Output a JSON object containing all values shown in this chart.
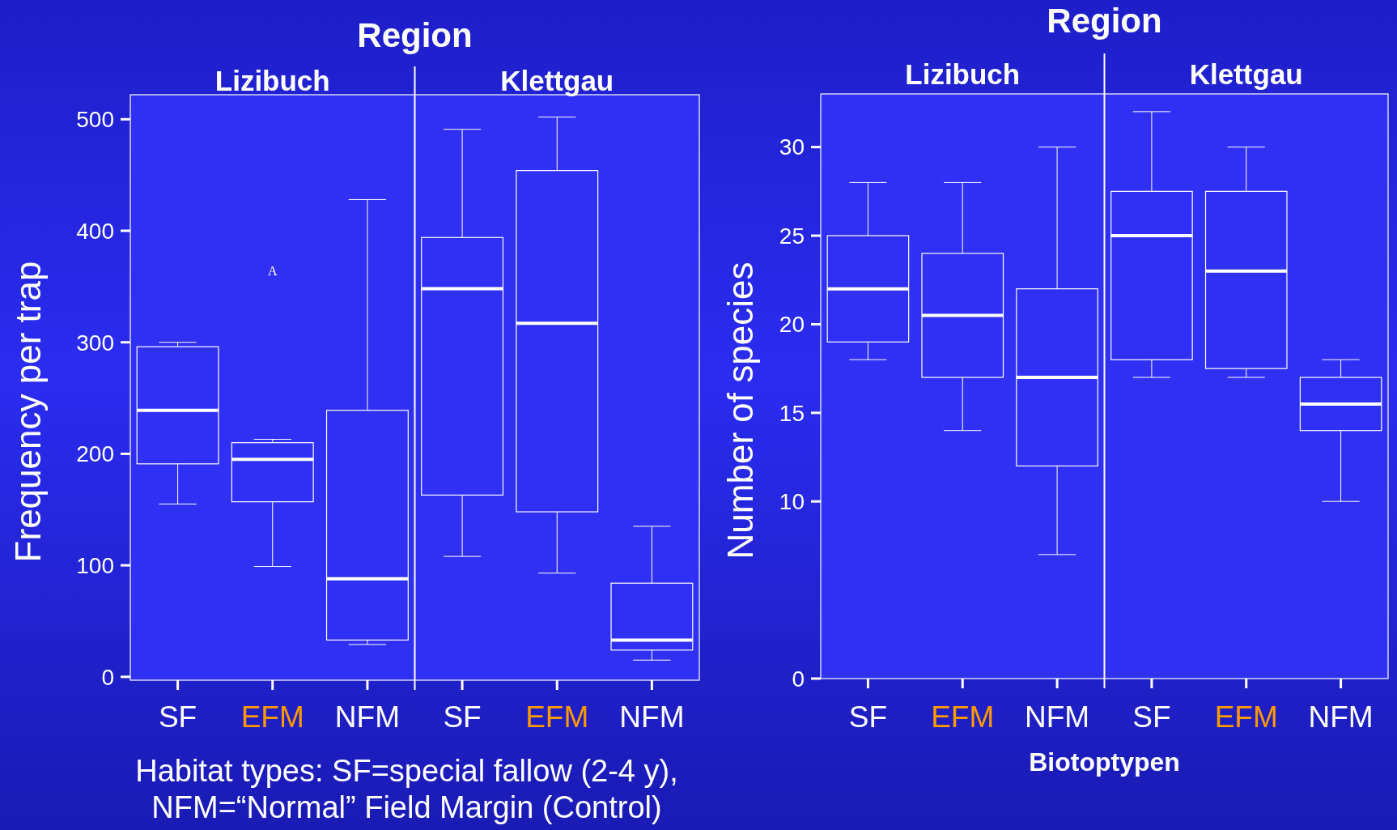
{
  "chart_data": [
    {
      "type": "box",
      "title": "Region",
      "ylabel": "Frequency per trap",
      "categories": [
        "SF",
        "EFM",
        "NFM",
        "SF",
        "EFM",
        "NFM"
      ],
      "color": "#ffffff",
      "ylim": [
        -3,
        522
      ],
      "yticks": [
        0,
        100,
        200,
        300,
        400,
        500
      ],
      "boxes": [
        {
          "low": 155,
          "q1": 191,
          "median": 239,
          "q3": 296,
          "high": 300
        },
        {
          "low": 99,
          "q1": 157,
          "median": 195,
          "q3": 210,
          "high": 213
        },
        {
          "low": 29,
          "q1": 33,
          "median": 88,
          "q3": 239,
          "high": 428
        },
        {
          "low": 108,
          "q1": 163,
          "median": 348,
          "q3": 394,
          "high": 491
        },
        {
          "low": 93,
          "q1": 148,
          "median": 317,
          "q3": 454,
          "high": 502
        },
        {
          "low": 15,
          "q1": 24,
          "median": 33,
          "q3": 84,
          "high": 135
        }
      ],
      "annotations": [
        "Lizibuch",
        "Klettgau",
        "A",
        "Habitat types: SF=special fallow (2-4 y),",
        "NFM=“Normal” Field Margin (Control)"
      ]
    },
    {
      "type": "box",
      "title": "Region",
      "ylabel": "Number of species",
      "xlabel": "Biotoptypen",
      "categories": [
        "SF",
        "EFM",
        "NFM",
        "SF",
        "EFM",
        "NFM"
      ],
      "color": "#ffffff",
      "ylim": [
        0,
        33
      ],
      "yticks": [
        0,
        10,
        15,
        20,
        25,
        30
      ],
      "boxes": [
        {
          "low": 18,
          "q1": 19,
          "median": 22,
          "q3": 25,
          "high": 28
        },
        {
          "low": 14,
          "q1": 17,
          "median": 20.5,
          "q3": 24,
          "high": 28
        },
        {
          "low": 7,
          "q1": 12,
          "median": 17,
          "q3": 22,
          "high": 30
        },
        {
          "low": 17,
          "q1": 18,
          "median": 25,
          "q3": 27.5,
          "high": 32
        },
        {
          "low": 17,
          "q1": 17.5,
          "median": 23,
          "q3": 27.5,
          "high": 30
        },
        {
          "low": 10,
          "q1": 14,
          "median": 15.5,
          "q3": 17,
          "high": 18
        }
      ],
      "annotations": [
        "Lizibuch",
        "Klettgau"
      ]
    }
  ]
}
